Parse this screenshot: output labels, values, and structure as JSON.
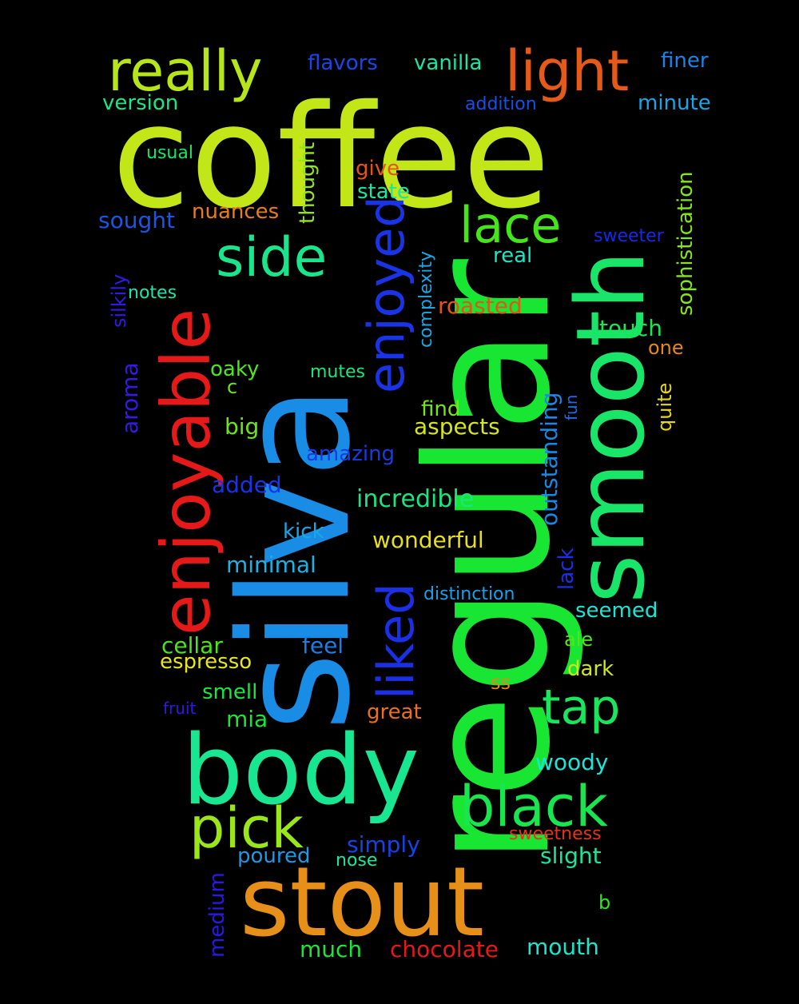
{
  "words": [
    {
      "text": "coffee",
      "color": "#c3e619"
    },
    {
      "text": "regular",
      "color": "#19e632"
    },
    {
      "text": "silva",
      "color": "#198ce6"
    },
    {
      "text": "smooth",
      "color": "#19e668"
    },
    {
      "text": "stout",
      "color": "#e69019"
    },
    {
      "text": "body",
      "color": "#19e690"
    },
    {
      "text": "enjoyable",
      "color": "#e61919"
    },
    {
      "text": "really",
      "color": "#b6e619"
    },
    {
      "text": "light",
      "color": "#e65a19"
    },
    {
      "text": "black",
      "color": "#19e64e"
    },
    {
      "text": "pick",
      "color": "#9ae619"
    },
    {
      "text": "side",
      "color": "#19e68c"
    },
    {
      "text": "lace",
      "color": "#45e619"
    },
    {
      "text": "enjoyed",
      "color": "#1934e6"
    },
    {
      "text": "liked",
      "color": "#1930e6"
    },
    {
      "text": "tap",
      "color": "#19e65d"
    },
    {
      "text": "flavors",
      "color": "#1947e6"
    },
    {
      "text": "vanilla",
      "color": "#19e6a4"
    },
    {
      "text": "finer",
      "color": "#1985e6"
    },
    {
      "text": "version",
      "color": "#19e686"
    },
    {
      "text": "addition",
      "color": "#194fe6"
    },
    {
      "text": "minute",
      "color": "#19a5e6"
    },
    {
      "text": "usual",
      "color": "#19e660"
    },
    {
      "text": "thought",
      "color": "#93e619"
    },
    {
      "text": "give",
      "color": "#e65319"
    },
    {
      "text": "state",
      "color": "#19e6a4"
    },
    {
      "text": "sophistication",
      "color": "#84e619"
    },
    {
      "text": "sought",
      "color": "#1956e6"
    },
    {
      "text": "nuances",
      "color": "#e67e19"
    },
    {
      "text": "sweeter",
      "color": "#1928e6"
    },
    {
      "text": "real",
      "color": "#19e6c6"
    },
    {
      "text": "silkily",
      "color": "#3019e6"
    },
    {
      "text": "notes",
      "color": "#19e6ad"
    },
    {
      "text": "complexity",
      "color": "#19a8e6"
    },
    {
      "text": "roasted",
      "color": "#e65319"
    },
    {
      "text": "touch",
      "color": "#19e655"
    },
    {
      "text": "one",
      "color": "#e68919"
    },
    {
      "text": "aroma",
      "color": "#3519e6"
    },
    {
      "text": "oaky",
      "color": "#4ee619"
    },
    {
      "text": "mutes",
      "color": "#19e675"
    },
    {
      "text": "c",
      "color": "#6de619"
    },
    {
      "text": "fun",
      "color": "#196be6"
    },
    {
      "text": "quite",
      "color": "#e6d819"
    },
    {
      "text": "find",
      "color": "#74e619"
    },
    {
      "text": "big",
      "color": "#6de619"
    },
    {
      "text": "aspects",
      "color": "#d8e619"
    },
    {
      "text": "outstanding",
      "color": "#1989e6"
    },
    {
      "text": "amazing",
      "color": "#193be6"
    },
    {
      "text": "added",
      "color": "#1934e6"
    },
    {
      "text": "incredible",
      "color": "#19e67e"
    },
    {
      "text": "kick",
      "color": "#19a8e6"
    },
    {
      "text": "wonderful",
      "color": "#e6df19"
    },
    {
      "text": "lack",
      "color": "#1931e6"
    },
    {
      "text": "minimal",
      "color": "#19b3e6"
    },
    {
      "text": "distinction",
      "color": "#19a0e6"
    },
    {
      "text": "seemed",
      "color": "#19e6d6"
    },
    {
      "text": "cellar",
      "color": "#4ae619"
    },
    {
      "text": "feel",
      "color": "#197ee6"
    },
    {
      "text": "ale",
      "color": "#51e619"
    },
    {
      "text": "espresso",
      "color": "#e6e619"
    },
    {
      "text": "dark",
      "color": "#d1e619"
    },
    {
      "text": "ss",
      "color": "#e68519"
    },
    {
      "text": "smell",
      "color": "#19e63f"
    },
    {
      "text": "fruit",
      "color": "#3019e6"
    },
    {
      "text": "mia",
      "color": "#19e635"
    },
    {
      "text": "great",
      "color": "#e67219"
    },
    {
      "text": "woody",
      "color": "#19e6d8"
    },
    {
      "text": "sweetness",
      "color": "#e63319"
    },
    {
      "text": "simply",
      "color": "#1942e6"
    },
    {
      "text": "poured",
      "color": "#1999e6"
    },
    {
      "text": "nose",
      "color": "#19e6a0"
    },
    {
      "text": "slight",
      "color": "#19e69a"
    },
    {
      "text": "medium",
      "color": "#2819e6"
    },
    {
      "text": "b",
      "color": "#2be619"
    },
    {
      "text": "much",
      "color": "#19e635"
    },
    {
      "text": "chocolate",
      "color": "#e61919"
    },
    {
      "text": "mouth",
      "color": "#19e6cc"
    }
  ]
}
